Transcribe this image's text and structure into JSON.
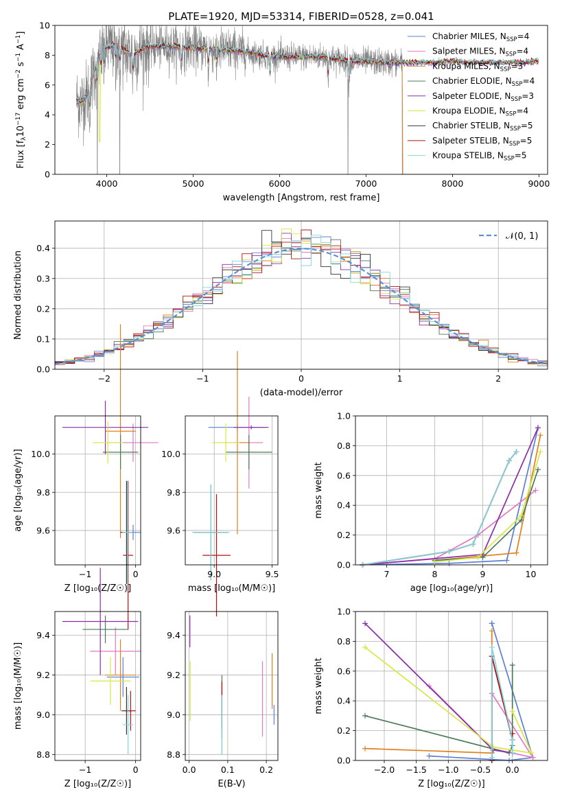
{
  "colors": {
    "chabrier_miles": "#5b7fd6",
    "salpeter_miles": "#e377c2",
    "kroupa_miles": "#e0801e",
    "chabrier_elodie": "#4a7a55",
    "salpeter_elodie": "#8a2ea8",
    "kroupa_elodie": "#d7e645",
    "chabrier_stelib": "#333333",
    "salpeter_stelib": "#b01010",
    "kroupa_stelib": "#82d6e0",
    "data": "#808080",
    "normal_curve": "#5b8fd6"
  },
  "legend_main": [
    {
      "label": "Chabrier MILES, N",
      "sub": "SSP",
      "suffix": "=4",
      "color": "#5b7fd6"
    },
    {
      "label": "Salpeter MILES, N",
      "sub": "SSP",
      "suffix": "=4",
      "color": "#e377c2"
    },
    {
      "label": "Kroupa MILES, N",
      "sub": "SSP",
      "suffix": "=3",
      "color": "#e0801e"
    },
    {
      "label": "Chabrier ELODIE, N",
      "sub": "SSP",
      "suffix": "=4",
      "color": "#4a7a55"
    },
    {
      "label": "Salpeter ELODIE, N",
      "sub": "SSP",
      "suffix": "=3",
      "color": "#8a2ea8"
    },
    {
      "label": "Kroupa ELODIE, N",
      "sub": "SSP",
      "suffix": "=4",
      "color": "#d7e645"
    },
    {
      "label": "Chabrier STELIB, N",
      "sub": "SSP",
      "suffix": "=5",
      "color": "#333333"
    },
    {
      "label": "Salpeter STELIB, N",
      "sub": "SSP",
      "suffix": "=5",
      "color": "#b01010"
    },
    {
      "label": "Kroupa STELIB, N",
      "sub": "SSP",
      "suffix": "=5",
      "color": "#82d6e0"
    }
  ],
  "chart_data": [
    {
      "id": "spectrum",
      "type": "line",
      "title": "PLATE=1920, MJD=53314, FIBERID=0528, z=0.041",
      "xlabel": "wavelength [Angstrom, rest frame]",
      "ylabel_parts": [
        "Flux [f",
        "λ",
        "10",
        "−17",
        " erg cm",
        "−2",
        " s",
        "−1",
        " A",
        "−1",
        "]"
      ],
      "xlim": [
        3400,
        9100
      ],
      "ylim": [
        0,
        10
      ],
      "xticks": [
        4000,
        5000,
        6000,
        7000,
        8000,
        9000
      ],
      "yticks": [
        0,
        2,
        4,
        6,
        8,
        10
      ],
      "continuum": [
        [
          3650,
          5.0
        ],
        [
          3700,
          4.8
        ],
        [
          3800,
          5.6
        ],
        [
          3850,
          6.8
        ],
        [
          3900,
          7.6
        ],
        [
          3950,
          8.6
        ],
        [
          4000,
          8.5
        ],
        [
          4100,
          8.7
        ],
        [
          4200,
          8.3
        ],
        [
          4300,
          8.0
        ],
        [
          4400,
          8.4
        ],
        [
          4500,
          8.6
        ],
        [
          4700,
          8.6
        ],
        [
          5000,
          8.5
        ],
        [
          5200,
          8.4
        ],
        [
          5500,
          8.3
        ],
        [
          5800,
          8.0
        ],
        [
          6000,
          7.9
        ],
        [
          6300,
          7.9
        ],
        [
          6500,
          7.9
        ],
        [
          6800,
          7.6
        ],
        [
          7000,
          7.6
        ],
        [
          7200,
          7.5
        ],
        [
          7400,
          7.5
        ],
        [
          7600,
          7.5
        ],
        [
          7800,
          7.5
        ],
        [
          8000,
          7.6
        ],
        [
          8200,
          7.5
        ],
        [
          8400,
          7.5
        ],
        [
          8600,
          7.5
        ],
        [
          8800,
          7.5
        ],
        [
          9000,
          7.6
        ]
      ],
      "data_range": [
        3650,
        7420
      ],
      "model_range": [
        3650,
        9000
      ],
      "absorption_lines": [
        3800,
        3890,
        3934,
        3968,
        4102,
        4150,
        4303,
        4861,
        5175,
        5270,
        5890,
        6563,
        6800
      ],
      "data_drops": [
        [
          3890,
          0
        ],
        [
          4150,
          0
        ],
        [
          6790,
          0
        ],
        [
          7420,
          0
        ]
      ]
    },
    {
      "id": "residuals",
      "type": "bar",
      "xlabel": "(data-model)/error",
      "ylabel": "Normed distribution",
      "xlim": [
        -2.5,
        2.5
      ],
      "ylim": [
        0,
        0.49
      ],
      "xticks": [
        -2,
        -1,
        0,
        1,
        2
      ],
      "yticks": [
        0.0,
        0.1,
        0.2,
        0.3,
        0.4
      ],
      "bin_width": 0.1,
      "legend_label": "𝒩(0, 1)",
      "legend_loc": "upper right"
    },
    {
      "id": "age-vs-Z",
      "type": "scatter",
      "xlabel": "Z [log₁₀(Z/Z☉)]",
      "ylabel": "age  [log₁₀(age/yr)]",
      "xlim": [
        -1.6,
        0.1
      ],
      "ylim": [
        9.42,
        10.2
      ],
      "xticks": [
        -1,
        0
      ],
      "yticks": [
        9.6,
        9.8,
        10.0
      ],
      "errorbars": [
        {
          "color": "#5b7fd6",
          "x": -0.05,
          "xerr": 0.15,
          "y": 9.59,
          "yerr": 0.04
        },
        {
          "color": "#e377c2",
          "x": -0.05,
          "xerr": 0.5,
          "y": 10.06,
          "yerr": 0.1
        },
        {
          "color": "#e0801e",
          "x": -0.3,
          "xerr": 0.3,
          "y": 10.12,
          "yerr": 0.56
        },
        {
          "color": "#4a7a55",
          "x": -0.3,
          "xerr": 0.35,
          "y": 10.01,
          "yerr": 0.09
        },
        {
          "color": "#8a2ea8",
          "x": -0.6,
          "xerr": 0.85,
          "y": 10.14,
          "yerr": 0.14
        },
        {
          "color": "#d7e645",
          "x": -0.55,
          "xerr": 0.3,
          "y": 10.06,
          "yerr": 0.11
        },
        {
          "color": "#333333",
          "x": -0.18,
          "xerr": 0.12,
          "y": 9.59,
          "yerr": 0.27
        },
        {
          "color": "#b01010",
          "x": -0.15,
          "xerr": 0.1,
          "y": 9.47,
          "yerr": 0.39
        },
        {
          "color": "#82d6e0",
          "x": -0.16,
          "xerr": 0.1,
          "y": 9.59,
          "yerr": 0.27
        }
      ]
    },
    {
      "id": "age-vs-mass",
      "type": "scatter",
      "xlabel": "mass [log₁₀(M/M☉)]",
      "ylabel": "",
      "xlim": [
        8.75,
        9.55
      ],
      "ylim": [
        9.42,
        10.2
      ],
      "xticks": [
        9.0,
        9.5
      ],
      "yticks": [
        9.6,
        9.8,
        10.0
      ],
      "errorbars": [
        {
          "color": "#5b7fd6",
          "x": 9.2,
          "xerr": 0.25,
          "y": 10.14,
          "yerr": 0.02
        },
        {
          "color": "#e377c2",
          "x": 9.3,
          "xerr": 0.12,
          "y": 10.06,
          "yerr": 0.24
        },
        {
          "color": "#e0801e",
          "x": 9.2,
          "xerr": 0.1,
          "y": 10.06,
          "yerr": 0.48
        },
        {
          "color": "#4a7a55",
          "x": 9.3,
          "xerr": 0.2,
          "y": 10.01,
          "yerr": 0.09
        },
        {
          "color": "#8a2ea8",
          "x": 9.32,
          "xerr": 0.15,
          "y": 10.14,
          "yerr": 0.01
        },
        {
          "color": "#d7e645",
          "x": 9.1,
          "xerr": 0.12,
          "y": 10.06,
          "yerr": 0.1
        },
        {
          "color": "#333333",
          "x": 8.97,
          "xerr": 0.15,
          "y": 9.59,
          "yerr": 0.25
        },
        {
          "color": "#b01010",
          "x": 9.02,
          "xerr": 0.12,
          "y": 9.47,
          "yerr": 0.32
        },
        {
          "color": "#82d6e0",
          "x": 8.97,
          "xerr": 0.16,
          "y": 9.59,
          "yerr": 0.25
        }
      ]
    },
    {
      "id": "weight-vs-age",
      "type": "line",
      "xlabel": "age  [log₁₀(age/yr)]",
      "ylabel": "mass weight",
      "xlim": [
        6.35,
        10.35
      ],
      "ylim": [
        0,
        1
      ],
      "xticks": [
        7,
        8,
        9,
        10
      ],
      "yticks": [
        0.0,
        0.2,
        0.4,
        0.6,
        0.8,
        1.0
      ],
      "series": [
        {
          "color": "#5b7fd6",
          "x": [
            6.5,
            8.3,
            9.5,
            10.15
          ],
          "y": [
            0.0,
            0.01,
            0.03,
            0.92
          ]
        },
        {
          "color": "#e377c2",
          "x": [
            6.5,
            8.0,
            8.9,
            10.1
          ],
          "y": [
            0.0,
            0.04,
            0.2,
            0.5
          ]
        },
        {
          "color": "#e0801e",
          "x": [
            8.0,
            9.7,
            10.2
          ],
          "y": [
            0.03,
            0.08,
            0.87
          ]
        },
        {
          "color": "#4a7a55",
          "x": [
            8.0,
            9.0,
            9.8,
            10.15
          ],
          "y": [
            0.03,
            0.05,
            0.3,
            0.64
          ]
        },
        {
          "color": "#8a2ea8",
          "x": [
            6.5,
            9.0,
            10.15
          ],
          "y": [
            0.0,
            0.07,
            0.92
          ]
        },
        {
          "color": "#d7e645",
          "x": [
            8.0,
            8.9,
            9.8,
            10.2
          ],
          "y": [
            0.02,
            0.05,
            0.33,
            0.76
          ]
        },
        {
          "color": "#333333",
          "x": [
            6.5,
            8.3,
            8.8,
            9.55,
            9.7
          ],
          "y": [
            0.0,
            0.09,
            0.14,
            0.7,
            0.76
          ]
        },
        {
          "color": "#b01010",
          "x": [
            6.5,
            8.3,
            8.8,
            9.55,
            9.7
          ],
          "y": [
            0.0,
            0.09,
            0.14,
            0.7,
            0.76
          ]
        },
        {
          "color": "#82d6e0",
          "x": [
            6.5,
            8.3,
            8.8,
            9.55,
            9.7
          ],
          "y": [
            0.0,
            0.09,
            0.14,
            0.7,
            0.76
          ]
        }
      ]
    },
    {
      "id": "mass-vs-Z",
      "type": "scatter",
      "xlabel": "Z [log₁₀(Z/Z☉)]",
      "ylabel": "mass [log₁₀(M/M☉)]",
      "xlim": [
        -1.6,
        0.1
      ],
      "ylim": [
        8.77,
        9.52
      ],
      "xticks": [
        -1,
        0
      ],
      "yticks": [
        8.8,
        9.0,
        9.2,
        9.4
      ],
      "errorbars": [
        {
          "color": "#5b7fd6",
          "x": -0.25,
          "xerr": 0.32,
          "y": 9.19,
          "yerr": 0.1
        },
        {
          "color": "#e377c2",
          "x": -0.4,
          "xerr": 0.5,
          "y": 9.32,
          "yerr": 0.12
        },
        {
          "color": "#e0801e",
          "x": -0.3,
          "xerr": 0.3,
          "y": 9.2,
          "yerr": 0.18
        },
        {
          "color": "#4a7a55",
          "x": -0.6,
          "xerr": 0.45,
          "y": 9.43,
          "yerr": 0.07
        },
        {
          "color": "#8a2ea8",
          "x": -0.7,
          "xerr": 0.75,
          "y": 9.47,
          "yerr": 0.27
        },
        {
          "color": "#d7e645",
          "x": -0.5,
          "xerr": 0.4,
          "y": 9.17,
          "yerr": 0.12
        },
        {
          "color": "#333333",
          "x": -0.18,
          "xerr": 0.1,
          "y": 9.02,
          "yerr": 0.12
        },
        {
          "color": "#b01010",
          "x": -0.1,
          "xerr": 0.1,
          "y": 9.02,
          "yerr": 0.1
        },
        {
          "color": "#82d6e0",
          "x": -0.15,
          "xerr": 0.1,
          "y": 8.95,
          "yerr": 0.15
        }
      ]
    },
    {
      "id": "mass-vs-ebv",
      "type": "scatter",
      "xlabel": "E(B-V)",
      "ylabel": "",
      "xlim": [
        -0.01,
        0.23
      ],
      "ylim": [
        8.77,
        9.52
      ],
      "xticks": [
        0.0,
        0.1,
        0.2
      ],
      "yticks": [
        8.8,
        9.0,
        9.2,
        9.4
      ],
      "errorbars": [
        {
          "color": "#5b7fd6",
          "x": 0.22,
          "xerr": 0,
          "y": 9.0,
          "yerr": 0.05
        },
        {
          "color": "#e377c2",
          "x": 0.19,
          "xerr": 0,
          "y": 9.08,
          "yerr": 0.19
        },
        {
          "color": "#e0801e",
          "x": 0.215,
          "xerr": 0,
          "y": 9.17,
          "yerr": 0.14
        },
        {
          "color": "#4a7a55",
          "x": 0.085,
          "xerr": 0,
          "y": 9.0,
          "yerr": 0.2
        },
        {
          "color": "#8a2ea8",
          "x": 0.002,
          "xerr": 0,
          "y": 9.42,
          "yerr": 0.08
        },
        {
          "color": "#d7e645",
          "x": 0.003,
          "xerr": 0,
          "y": 9.12,
          "yerr": 0.15
        },
        {
          "color": "#333333",
          "x": 0.085,
          "xerr": 0,
          "y": 9.02,
          "yerr": 0.14
        },
        {
          "color": "#b01010",
          "x": 0.085,
          "xerr": 0,
          "y": 9.05,
          "yerr": 0.12
        },
        {
          "color": "#82d6e0",
          "x": 0.085,
          "xerr": 0,
          "y": 8.95,
          "yerr": 0.15
        }
      ]
    },
    {
      "id": "weight-vs-Z",
      "type": "line",
      "xlabel": "Z [log₁₀(Z/Z☉)]",
      "ylabel": "mass weight",
      "xlim": [
        -2.45,
        0.55
      ],
      "ylim": [
        0,
        1
      ],
      "xticks": [
        -2.0,
        -1.5,
        -1.0,
        -0.5,
        0.0
      ],
      "yticks": [
        0.0,
        0.2,
        0.4,
        0.6,
        0.8,
        1.0
      ],
      "series": [
        {
          "color": "#5b7fd6",
          "x": [
            -1.3,
            -0.05,
            0.32,
            -0.32,
            -0.32
          ],
          "y": [
            0.03,
            0.0,
            0.02,
            0.92,
            0.92
          ]
        },
        {
          "color": "#e377c2",
          "x": [
            -1.3,
            -0.32,
            0.32,
            -0.32
          ],
          "y": [
            0.5,
            0.08,
            0.02,
            0.45
          ]
        },
        {
          "color": "#e0801e",
          "x": [
            -2.3,
            -0.32,
            -0.32
          ],
          "y": [
            0.08,
            0.05,
            0.87
          ]
        },
        {
          "color": "#4a7a55",
          "x": [
            -2.3,
            -0.05,
            0.0,
            0.0
          ],
          "y": [
            0.3,
            0.05,
            0.1,
            0.64
          ]
        },
        {
          "color": "#8a2ea8",
          "x": [
            -2.3,
            -0.3,
            0.0
          ],
          "y": [
            0.92,
            0.07,
            0.05
          ]
        },
        {
          "color": "#d7e645",
          "x": [
            -2.3,
            -0.3,
            0.3,
            0.0
          ],
          "y": [
            0.76,
            0.09,
            0.05,
            0.33
          ]
        },
        {
          "color": "#333333",
          "x": [
            -0.32,
            -0.32,
            0.0,
            0.0,
            0.0
          ],
          "y": [
            0.0,
            0.7,
            0.14,
            0.18,
            0.05
          ]
        },
        {
          "color": "#b01010",
          "x": [
            -0.32,
            -0.32,
            0.0,
            0.0
          ],
          "y": [
            0.0,
            0.7,
            0.14,
            0.18
          ]
        },
        {
          "color": "#82d6e0",
          "x": [
            -0.32,
            -0.32,
            0.0,
            0.0
          ],
          "y": [
            0.02,
            0.76,
            0.14,
            0.05
          ]
        }
      ]
    }
  ]
}
